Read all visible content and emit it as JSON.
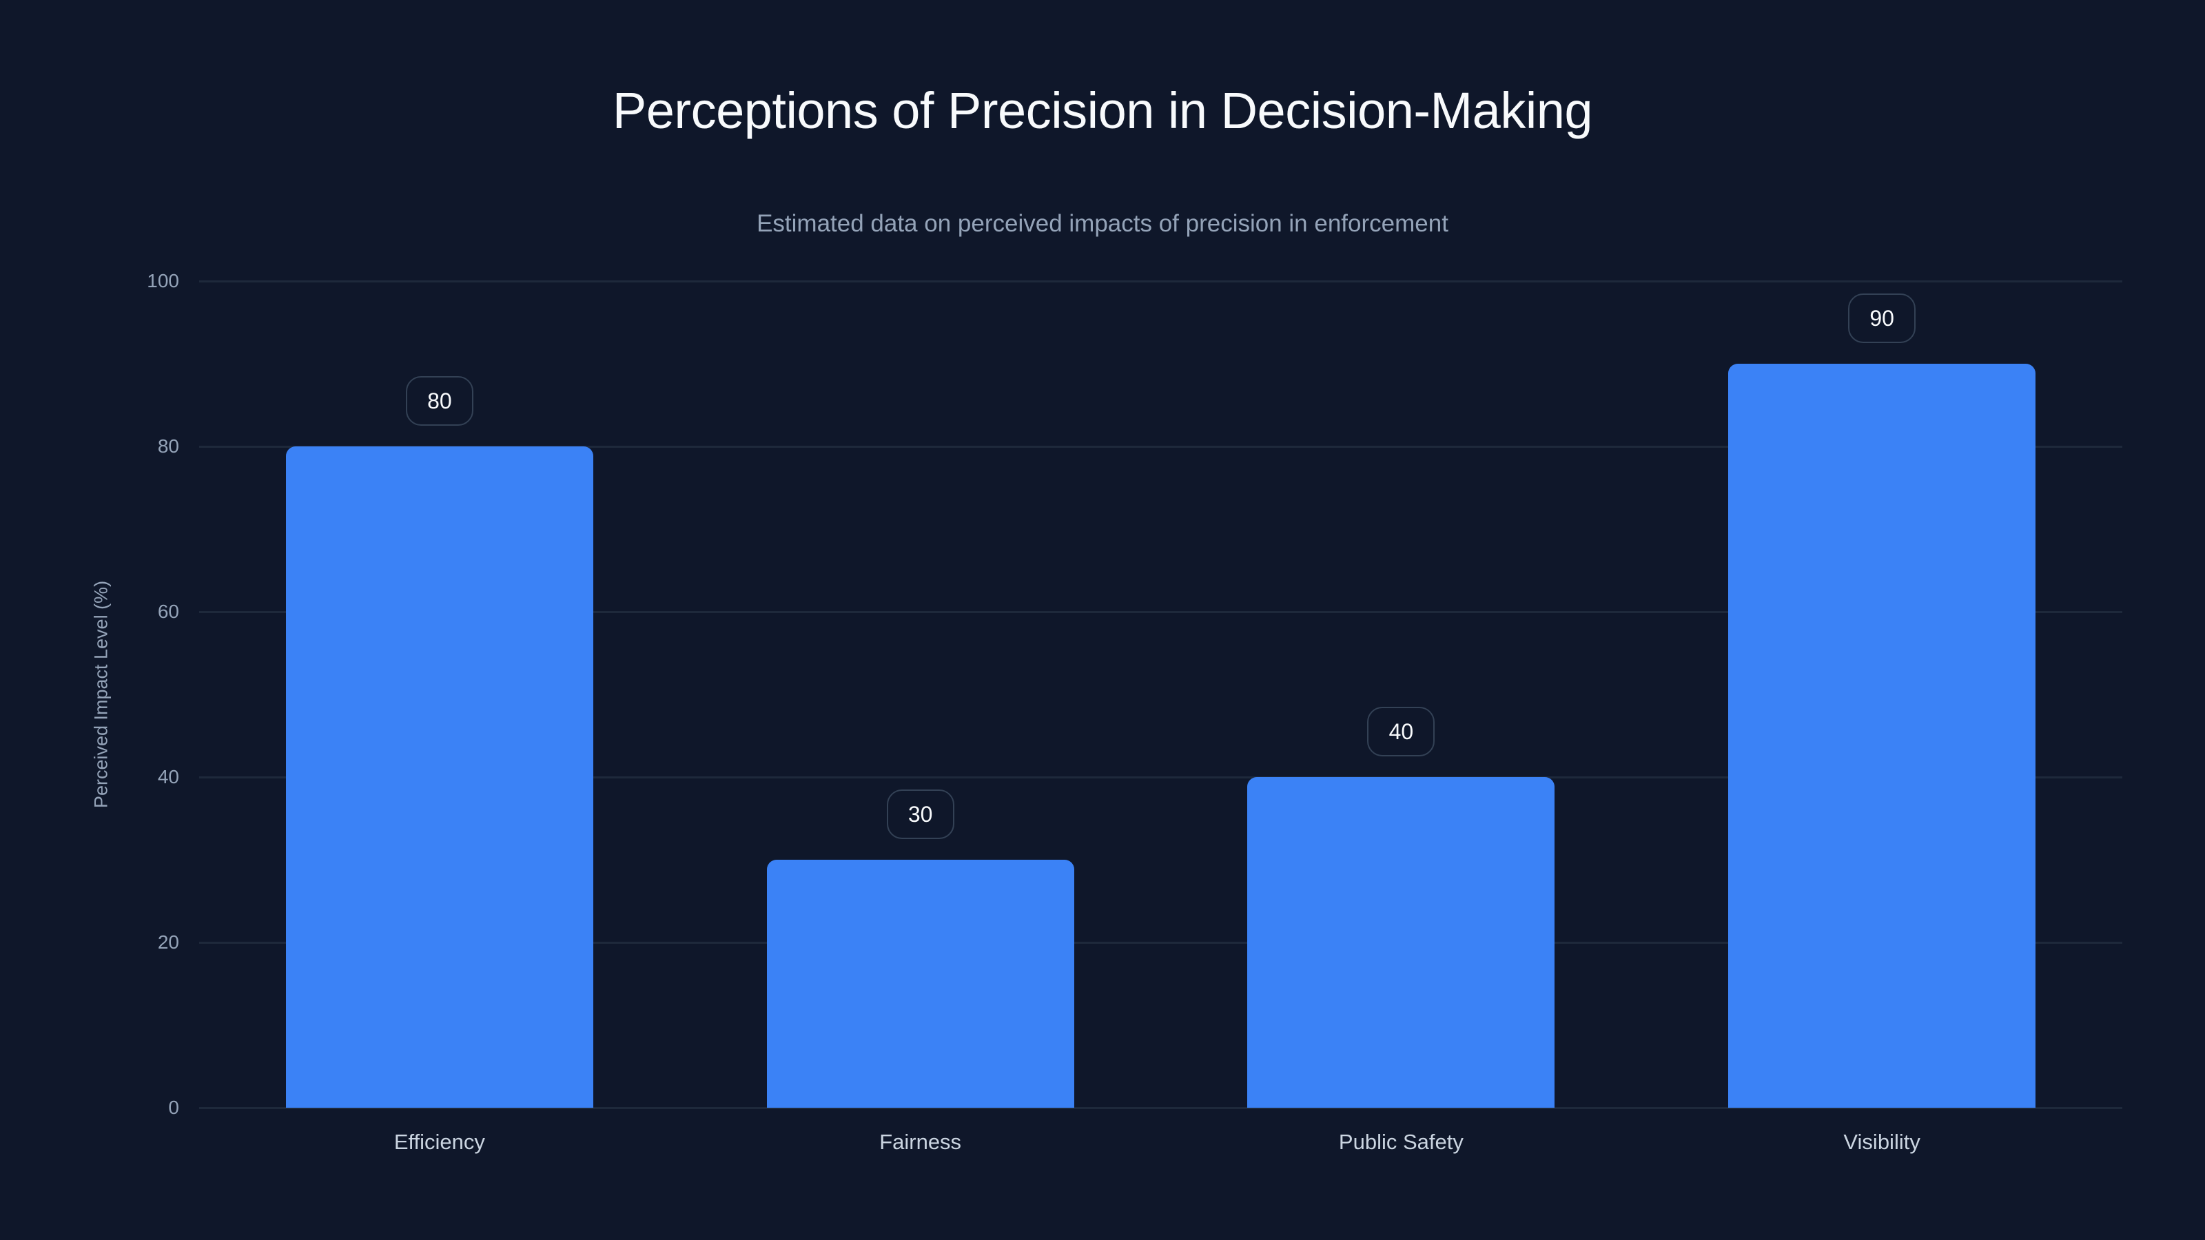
{
  "chart_data": {
    "type": "bar",
    "title": "Perceptions of Precision in Decision-Making",
    "subtitle": "Estimated data on perceived impacts of precision in enforcement",
    "xlabel": "",
    "ylabel": "Perceived Impact Level (%)",
    "categories": [
      "Efficiency",
      "Fairness",
      "Public Safety",
      "Visibility"
    ],
    "values": [
      80,
      30,
      40,
      90
    ],
    "value_labels": [
      "80",
      "30",
      "40",
      "90"
    ],
    "ylim": [
      0,
      100
    ],
    "yticks": [
      "0",
      "20",
      "40",
      "60",
      "80",
      "100"
    ],
    "grid": true,
    "legend": null,
    "colors": {
      "background": "#0f172a",
      "bar": "#3b82f6",
      "grid": "#1e293b",
      "tick_text": "#94a3b8",
      "title_text": "#f8fafc"
    }
  }
}
